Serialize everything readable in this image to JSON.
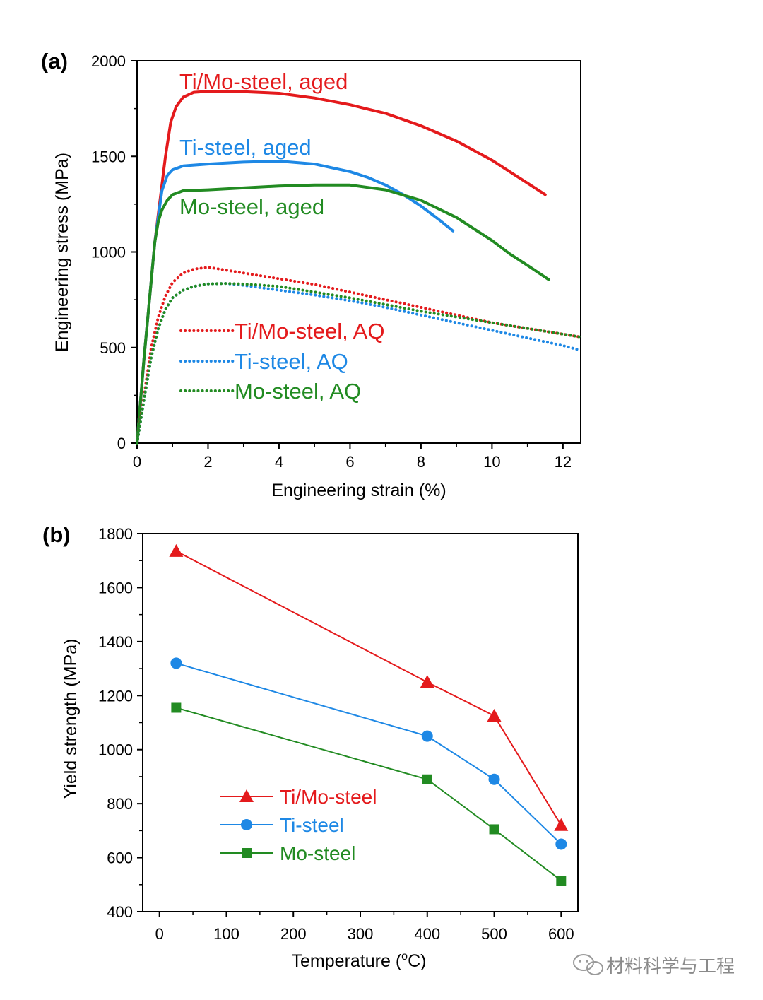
{
  "chart_data": [
    {
      "panel_label": "(a)",
      "type": "line",
      "xlabel": "Engineering strain  (%)",
      "ylabel": "Engineering stress  (MPa)",
      "xlim": [
        0,
        12.5
      ],
      "ylim": [
        0,
        2000
      ],
      "xticks": [
        0,
        2,
        4,
        6,
        8,
        10,
        12
      ],
      "yticks": [
        0,
        500,
        1000,
        1500,
        2000
      ],
      "grid": false,
      "colors": {
        "red": "#e41a1c",
        "blue": "#1e88e5",
        "green": "#228b22"
      },
      "series": [
        {
          "name": "Ti/Mo-steel, aged",
          "color": "#e41a1c",
          "style": "solid",
          "x": [
            0,
            0.2,
            0.5,
            0.8,
            0.95,
            1.1,
            1.3,
            1.6,
            2,
            3,
            4,
            5,
            6,
            7,
            8,
            9,
            10,
            10.5,
            11,
            11.5
          ],
          "y": [
            0,
            450,
            1050,
            1500,
            1680,
            1760,
            1810,
            1835,
            1840,
            1838,
            1830,
            1805,
            1770,
            1725,
            1660,
            1580,
            1480,
            1420,
            1360,
            1300
          ]
        },
        {
          "name": "Ti-steel, aged",
          "color": "#1e88e5",
          "style": "solid",
          "x": [
            0,
            0.2,
            0.5,
            0.7,
            0.85,
            1,
            1.3,
            2,
            3,
            4,
            5,
            6,
            6.5,
            7,
            7.5,
            8,
            8.5,
            8.9
          ],
          "y": [
            0,
            450,
            1050,
            1320,
            1400,
            1430,
            1450,
            1460,
            1470,
            1475,
            1460,
            1420,
            1390,
            1350,
            1300,
            1240,
            1170,
            1110
          ]
        },
        {
          "name": "Mo-steel, aged",
          "color": "#228b22",
          "style": "solid",
          "x": [
            0,
            0.2,
            0.5,
            0.6,
            0.7,
            0.85,
            1,
            1.3,
            2,
            3,
            4,
            5,
            6,
            7,
            8,
            9,
            10,
            10.5,
            11,
            11.6
          ],
          "y": [
            0,
            450,
            1050,
            1160,
            1220,
            1270,
            1300,
            1320,
            1325,
            1335,
            1345,
            1350,
            1350,
            1325,
            1270,
            1180,
            1060,
            990,
            930,
            855
          ]
        },
        {
          "name": "Ti/Mo-steel, AQ",
          "color": "#e41a1c",
          "style": "dotted",
          "x": [
            0,
            0.2,
            0.4,
            0.6,
            0.8,
            1,
            1.3,
            1.6,
            2,
            3,
            4,
            5,
            6,
            7,
            8,
            9,
            10,
            11,
            12,
            12.5
          ],
          "y": [
            0,
            250,
            500,
            660,
            770,
            840,
            890,
            910,
            920,
            890,
            860,
            830,
            790,
            750,
            710,
            670,
            630,
            600,
            570,
            555
          ]
        },
        {
          "name": "Ti-steel, AQ",
          "color": "#1e88e5",
          "style": "dotted",
          "x": [
            0,
            0.2,
            0.4,
            0.6,
            0.8,
            1,
            1.3,
            1.6,
            2,
            2.5,
            3,
            4,
            5,
            6,
            7,
            8,
            9,
            10,
            11,
            12,
            12.5
          ],
          "y": [
            0,
            230,
            450,
            600,
            700,
            760,
            800,
            820,
            833,
            835,
            825,
            800,
            775,
            745,
            710,
            670,
            630,
            590,
            550,
            510,
            485
          ]
        },
        {
          "name": "Mo-steel, AQ",
          "color": "#228b22",
          "style": "dotted",
          "x": [
            0,
            0.2,
            0.4,
            0.6,
            0.8,
            1,
            1.3,
            1.6,
            2,
            2.5,
            3,
            4,
            5,
            6,
            7,
            8,
            9,
            10,
            11,
            12,
            12.5
          ],
          "y": [
            0,
            230,
            450,
            600,
            700,
            760,
            800,
            820,
            833,
            835,
            832,
            820,
            790,
            760,
            725,
            690,
            660,
            630,
            600,
            570,
            555
          ]
        }
      ]
    },
    {
      "panel_label": "(b)",
      "type": "line",
      "xlabel": "Temperature  (",
      "xlabel_unit_circ": "o",
      "xlabel_unit_tail": "C)",
      "ylabel": "Yield strength  (MPa)",
      "xlim": [
        -25,
        625
      ],
      "ylim": [
        400,
        1800
      ],
      "xticks": [
        0,
        100,
        200,
        300,
        400,
        500,
        600
      ],
      "yticks": [
        400,
        600,
        800,
        1000,
        1200,
        1400,
        1600,
        1800
      ],
      "grid": false,
      "legend_position": "bottom-left",
      "series": [
        {
          "name": "Ti/Mo-steel",
          "color": "#e41a1c",
          "marker": "triangle",
          "x": [
            25,
            400,
            500,
            600
          ],
          "y": [
            1735,
            1250,
            1125,
            720
          ]
        },
        {
          "name": "Ti-steel",
          "color": "#1e88e5",
          "marker": "circle",
          "x": [
            25,
            400,
            500,
            600
          ],
          "y": [
            1320,
            1050,
            890,
            650
          ]
        },
        {
          "name": "Mo-steel",
          "color": "#228b22",
          "marker": "square",
          "x": [
            25,
            400,
            500,
            600
          ],
          "y": [
            1155,
            890,
            705,
            515
          ]
        }
      ]
    }
  ],
  "watermark": {
    "text": "材料科学与工程",
    "icon": "wechat-icon"
  }
}
